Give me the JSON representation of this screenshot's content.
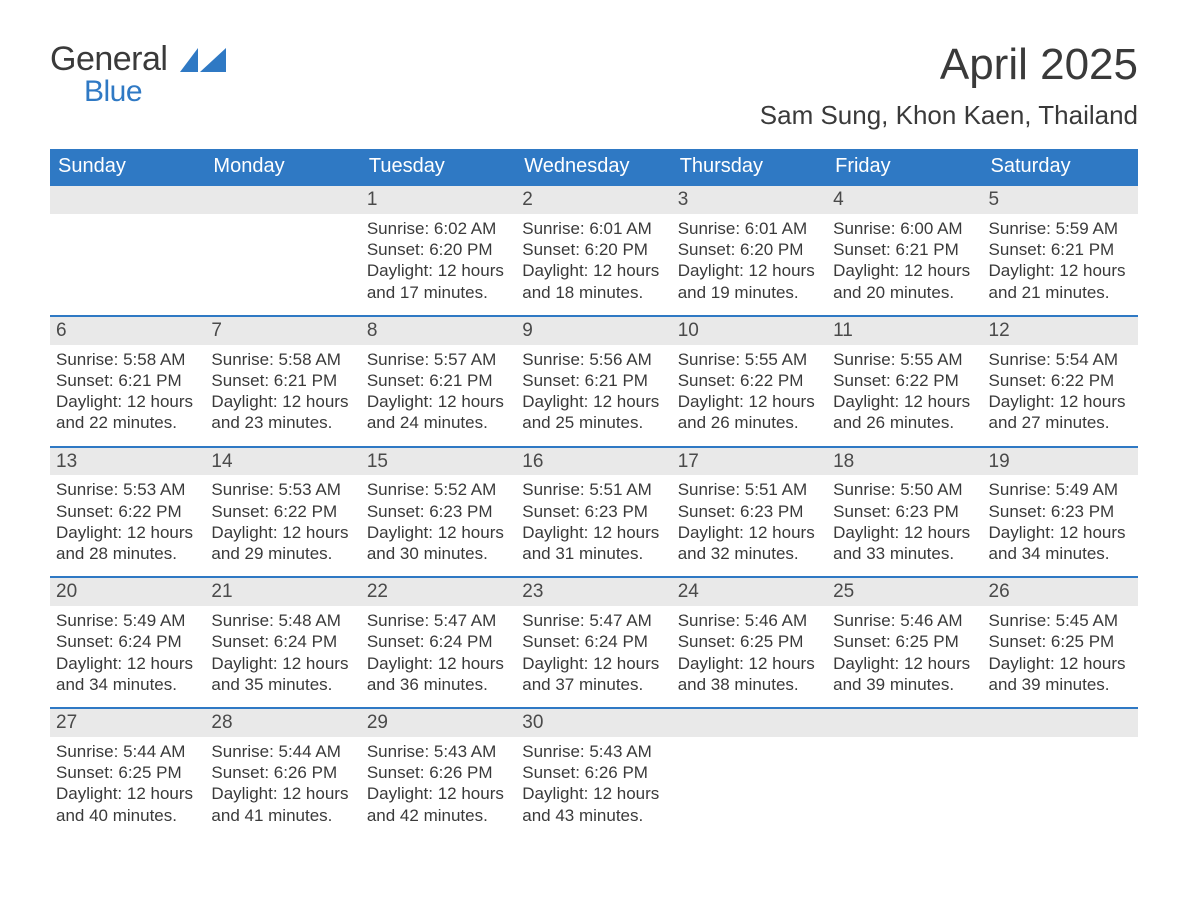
{
  "brand": {
    "general": "General",
    "blue": "Blue"
  },
  "title": "April 2025",
  "location": "Sam Sung, Khon Kaen, Thailand",
  "colors": {
    "header_bg": "#2f79c4",
    "header_text": "#ffffff",
    "row_divider": "#2f79c4",
    "daynum_bg": "#e9e9e9",
    "body_text": "#3a3a3a",
    "logo_blue": "#2f79c4"
  },
  "weekdays": [
    "Sunday",
    "Monday",
    "Tuesday",
    "Wednesday",
    "Thursday",
    "Friday",
    "Saturday"
  ],
  "weeks": [
    [
      null,
      null,
      {
        "n": "1",
        "sr": "Sunrise: 6:02 AM",
        "ss": "Sunset: 6:20 PM",
        "dl": "Daylight: 12 hours and 17 minutes."
      },
      {
        "n": "2",
        "sr": "Sunrise: 6:01 AM",
        "ss": "Sunset: 6:20 PM",
        "dl": "Daylight: 12 hours and 18 minutes."
      },
      {
        "n": "3",
        "sr": "Sunrise: 6:01 AM",
        "ss": "Sunset: 6:20 PM",
        "dl": "Daylight: 12 hours and 19 minutes."
      },
      {
        "n": "4",
        "sr": "Sunrise: 6:00 AM",
        "ss": "Sunset: 6:21 PM",
        "dl": "Daylight: 12 hours and 20 minutes."
      },
      {
        "n": "5",
        "sr": "Sunrise: 5:59 AM",
        "ss": "Sunset: 6:21 PM",
        "dl": "Daylight: 12 hours and 21 minutes."
      }
    ],
    [
      {
        "n": "6",
        "sr": "Sunrise: 5:58 AM",
        "ss": "Sunset: 6:21 PM",
        "dl": "Daylight: 12 hours and 22 minutes."
      },
      {
        "n": "7",
        "sr": "Sunrise: 5:58 AM",
        "ss": "Sunset: 6:21 PM",
        "dl": "Daylight: 12 hours and 23 minutes."
      },
      {
        "n": "8",
        "sr": "Sunrise: 5:57 AM",
        "ss": "Sunset: 6:21 PM",
        "dl": "Daylight: 12 hours and 24 minutes."
      },
      {
        "n": "9",
        "sr": "Sunrise: 5:56 AM",
        "ss": "Sunset: 6:21 PM",
        "dl": "Daylight: 12 hours and 25 minutes."
      },
      {
        "n": "10",
        "sr": "Sunrise: 5:55 AM",
        "ss": "Sunset: 6:22 PM",
        "dl": "Daylight: 12 hours and 26 minutes."
      },
      {
        "n": "11",
        "sr": "Sunrise: 5:55 AM",
        "ss": "Sunset: 6:22 PM",
        "dl": "Daylight: 12 hours and 26 minutes."
      },
      {
        "n": "12",
        "sr": "Sunrise: 5:54 AM",
        "ss": "Sunset: 6:22 PM",
        "dl": "Daylight: 12 hours and 27 minutes."
      }
    ],
    [
      {
        "n": "13",
        "sr": "Sunrise: 5:53 AM",
        "ss": "Sunset: 6:22 PM",
        "dl": "Daylight: 12 hours and 28 minutes."
      },
      {
        "n": "14",
        "sr": "Sunrise: 5:53 AM",
        "ss": "Sunset: 6:22 PM",
        "dl": "Daylight: 12 hours and 29 minutes."
      },
      {
        "n": "15",
        "sr": "Sunrise: 5:52 AM",
        "ss": "Sunset: 6:23 PM",
        "dl": "Daylight: 12 hours and 30 minutes."
      },
      {
        "n": "16",
        "sr": "Sunrise: 5:51 AM",
        "ss": "Sunset: 6:23 PM",
        "dl": "Daylight: 12 hours and 31 minutes."
      },
      {
        "n": "17",
        "sr": "Sunrise: 5:51 AM",
        "ss": "Sunset: 6:23 PM",
        "dl": "Daylight: 12 hours and 32 minutes."
      },
      {
        "n": "18",
        "sr": "Sunrise: 5:50 AM",
        "ss": "Sunset: 6:23 PM",
        "dl": "Daylight: 12 hours and 33 minutes."
      },
      {
        "n": "19",
        "sr": "Sunrise: 5:49 AM",
        "ss": "Sunset: 6:23 PM",
        "dl": "Daylight: 12 hours and 34 minutes."
      }
    ],
    [
      {
        "n": "20",
        "sr": "Sunrise: 5:49 AM",
        "ss": "Sunset: 6:24 PM",
        "dl": "Daylight: 12 hours and 34 minutes."
      },
      {
        "n": "21",
        "sr": "Sunrise: 5:48 AM",
        "ss": "Sunset: 6:24 PM",
        "dl": "Daylight: 12 hours and 35 minutes."
      },
      {
        "n": "22",
        "sr": "Sunrise: 5:47 AM",
        "ss": "Sunset: 6:24 PM",
        "dl": "Daylight: 12 hours and 36 minutes."
      },
      {
        "n": "23",
        "sr": "Sunrise: 5:47 AM",
        "ss": "Sunset: 6:24 PM",
        "dl": "Daylight: 12 hours and 37 minutes."
      },
      {
        "n": "24",
        "sr": "Sunrise: 5:46 AM",
        "ss": "Sunset: 6:25 PM",
        "dl": "Daylight: 12 hours and 38 minutes."
      },
      {
        "n": "25",
        "sr": "Sunrise: 5:46 AM",
        "ss": "Sunset: 6:25 PM",
        "dl": "Daylight: 12 hours and 39 minutes."
      },
      {
        "n": "26",
        "sr": "Sunrise: 5:45 AM",
        "ss": "Sunset: 6:25 PM",
        "dl": "Daylight: 12 hours and 39 minutes."
      }
    ],
    [
      {
        "n": "27",
        "sr": "Sunrise: 5:44 AM",
        "ss": "Sunset: 6:25 PM",
        "dl": "Daylight: 12 hours and 40 minutes."
      },
      {
        "n": "28",
        "sr": "Sunrise: 5:44 AM",
        "ss": "Sunset: 6:26 PM",
        "dl": "Daylight: 12 hours and 41 minutes."
      },
      {
        "n": "29",
        "sr": "Sunrise: 5:43 AM",
        "ss": "Sunset: 6:26 PM",
        "dl": "Daylight: 12 hours and 42 minutes."
      },
      {
        "n": "30",
        "sr": "Sunrise: 5:43 AM",
        "ss": "Sunset: 6:26 PM",
        "dl": "Daylight: 12 hours and 43 minutes."
      },
      null,
      null,
      null
    ]
  ]
}
